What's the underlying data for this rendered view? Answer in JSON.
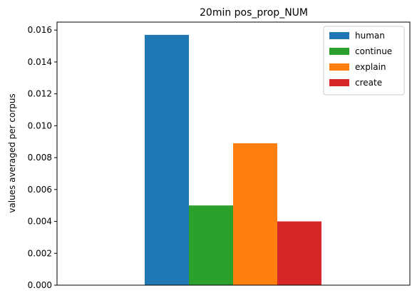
{
  "chart_data": {
    "type": "bar",
    "title": "20min pos_prop_NUM",
    "xlabel": "",
    "ylabel": "values averaged per corpus",
    "ylim": [
      0,
      0.0165
    ],
    "yticks": [
      "0.000",
      "0.002",
      "0.004",
      "0.006",
      "0.008",
      "0.010",
      "0.012",
      "0.014",
      "0.016"
    ],
    "grid": false,
    "legend_position": "top-right",
    "series": [
      {
        "name": "human",
        "value": 0.0157,
        "color": "#1f77b4"
      },
      {
        "name": "continue",
        "value": 0.005,
        "color": "#2ca02c"
      },
      {
        "name": "explain",
        "value": 0.0089,
        "color": "#ff7f0e"
      },
      {
        "name": "create",
        "value": 0.004,
        "color": "#d62728"
      }
    ]
  }
}
